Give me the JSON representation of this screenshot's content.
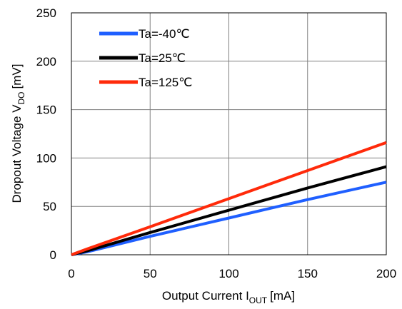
{
  "chart_data": {
    "type": "line",
    "xlabel": "Output Current I",
    "xlabel_sub": "OUT",
    "xlabel_unit": "[mA]",
    "ylabel": "Dropout Voltage V",
    "ylabel_sub": "DO",
    "ylabel_unit": "[mV]",
    "xlim": [
      0,
      200
    ],
    "ylim": [
      0,
      250
    ],
    "xticks": [
      "0",
      "50",
      "100",
      "150",
      "200"
    ],
    "yticks": [
      "0",
      "50",
      "100",
      "150",
      "200",
      "250"
    ],
    "grid": true,
    "legend_position": "top-left",
    "series": [
      {
        "name": "Ta=-40℃",
        "color": "#1f5fff",
        "x": [
          0,
          10,
          50,
          100,
          150,
          200
        ],
        "y": [
          0,
          3,
          19,
          38,
          57,
          75
        ]
      },
      {
        "name": "Ta=25℃",
        "color": "#000000",
        "x": [
          0,
          10,
          50,
          100,
          150,
          200
        ],
        "y": [
          0,
          4,
          23,
          46,
          69,
          91
        ]
      },
      {
        "name": "Ta=125℃",
        "color": "#ff2a0a",
        "x": [
          0,
          10,
          50,
          100,
          150,
          200
        ],
        "y": [
          0,
          6,
          29,
          58,
          87,
          116
        ]
      }
    ]
  }
}
